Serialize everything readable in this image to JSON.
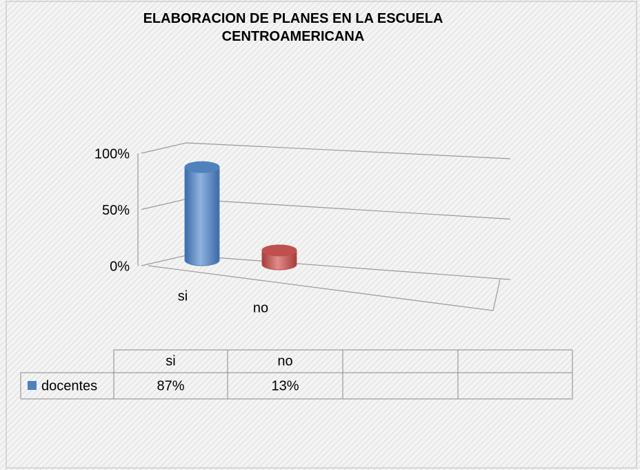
{
  "chart_data": {
    "type": "bar3d",
    "title": "ELABORACION DE PLANES EN LA ESCUELA CENTROAMERICANA",
    "categories": [
      "si",
      "no"
    ],
    "series": [
      {
        "name": "docentes",
        "color": "#4f81bd",
        "values": [
          87,
          13
        ],
        "value_labels": [
          "87%",
          "13%"
        ]
      }
    ],
    "colors": [
      "#4f81bd",
      "#c0504d"
    ],
    "ylim": [
      0,
      100
    ],
    "yticks": [
      {
        "value": 0,
        "label": "0%"
      },
      {
        "value": 50,
        "label": "50%"
      },
      {
        "value": 100,
        "label": "100%"
      }
    ],
    "grid": true
  }
}
